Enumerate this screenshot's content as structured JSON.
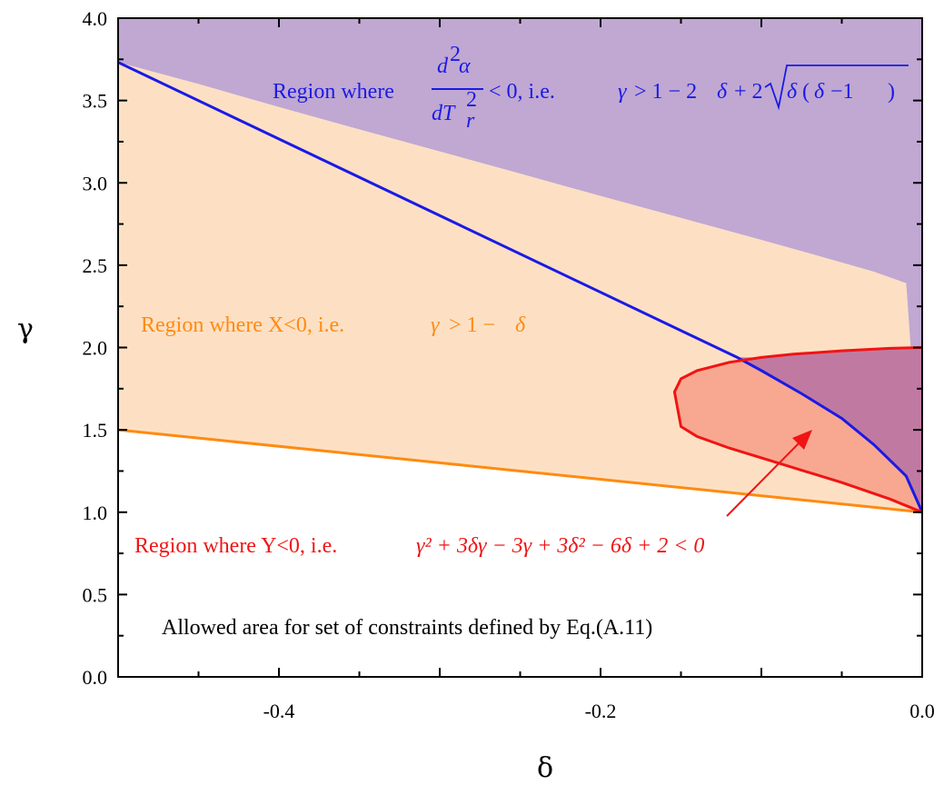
{
  "chart_data": {
    "type": "area",
    "title": "",
    "xlabel": "δ",
    "ylabel": "γ",
    "xlim": [
      -0.5,
      0.0
    ],
    "ylim": [
      0.0,
      4.0
    ],
    "x_ticks": [
      "-0.4",
      "-0.2",
      "0.0"
    ],
    "y_ticks": [
      "0.0",
      "0.5",
      "1.0",
      "1.5",
      "2.0",
      "2.5",
      "3.0",
      "3.5",
      "4.0"
    ],
    "colors": {
      "purple_region": "#c0a8d2",
      "orange_region": "#fde0c3",
      "red_region": "#f8a890",
      "overlap_region": "#c07aa2",
      "blue_curve": "#1a1ae6",
      "orange_line": "#ff8a10",
      "red_curve": "#f01414",
      "arrow": "#f01414"
    },
    "series": [
      {
        "curve": "γ = 1 − 2δ + 2√(δ(δ−1))",
        "x": [
          -0.5,
          -0.45,
          -0.4,
          -0.35,
          -0.3,
          -0.25,
          -0.2,
          -0.15,
          -0.1,
          -0.075,
          -0.05,
          -0.03,
          -0.01,
          0.0
        ],
        "y": [
          3.732,
          3.6,
          3.46,
          3.324,
          3.19,
          3.056,
          2.92,
          2.787,
          2.653,
          2.585,
          2.516,
          2.46,
          2.39,
          1.0
        ]
      },
      {
        "curve": "γ = 1 − δ",
        "x": [
          -0.5,
          0.0
        ],
        "y": [
          1.5,
          1.0
        ]
      },
      {
        "curve": "γ² + 3δγ − 3γ + 3δ² − 6δ + 2 = 0",
        "x": [
          0.0,
          -0.02,
          -0.05,
          -0.08,
          -0.1,
          -0.12,
          -0.14,
          -0.15,
          -0.154,
          -0.15,
          -0.14,
          -0.12,
          -0.1,
          -0.08,
          -0.05,
          -0.02,
          0.0
        ],
        "y": [
          1.0,
          1.08,
          1.18,
          1.27,
          1.33,
          1.39,
          1.46,
          1.52,
          1.73,
          1.81,
          1.86,
          1.91,
          1.94,
          1.96,
          1.98,
          1.995,
          2.0
        ]
      }
    ],
    "annotations": {
      "blue": {
        "text_prefix": "Region where",
        "frac_num_d": "d",
        "frac_num_alpha": "α",
        "frac_den_d": "dT",
        "frac_den_sub": "r",
        "after_frac": "< 0,  i.e.",
        "gamma": "γ",
        "ineq": "> 1 − 2",
        "delta1": "δ",
        "plus2": "+ 2",
        "delta2": "δ",
        "paren_open": "(",
        "delta3": "δ",
        "minus1": "−1",
        "paren_close": ")"
      },
      "orange": {
        "text": "Region where X<0, i.e.",
        "math_gamma": "γ",
        "math_rest": "> 1 −",
        "math_delta": "δ"
      },
      "red": {
        "text": "Region where Y<0, i.e.",
        "math": "γ² + 3δγ − 3γ + 3δ² − 6δ + 2 < 0"
      },
      "allowed": {
        "text": "Allowed area for set of constraints defined by Eq.(A.11)"
      }
    }
  }
}
